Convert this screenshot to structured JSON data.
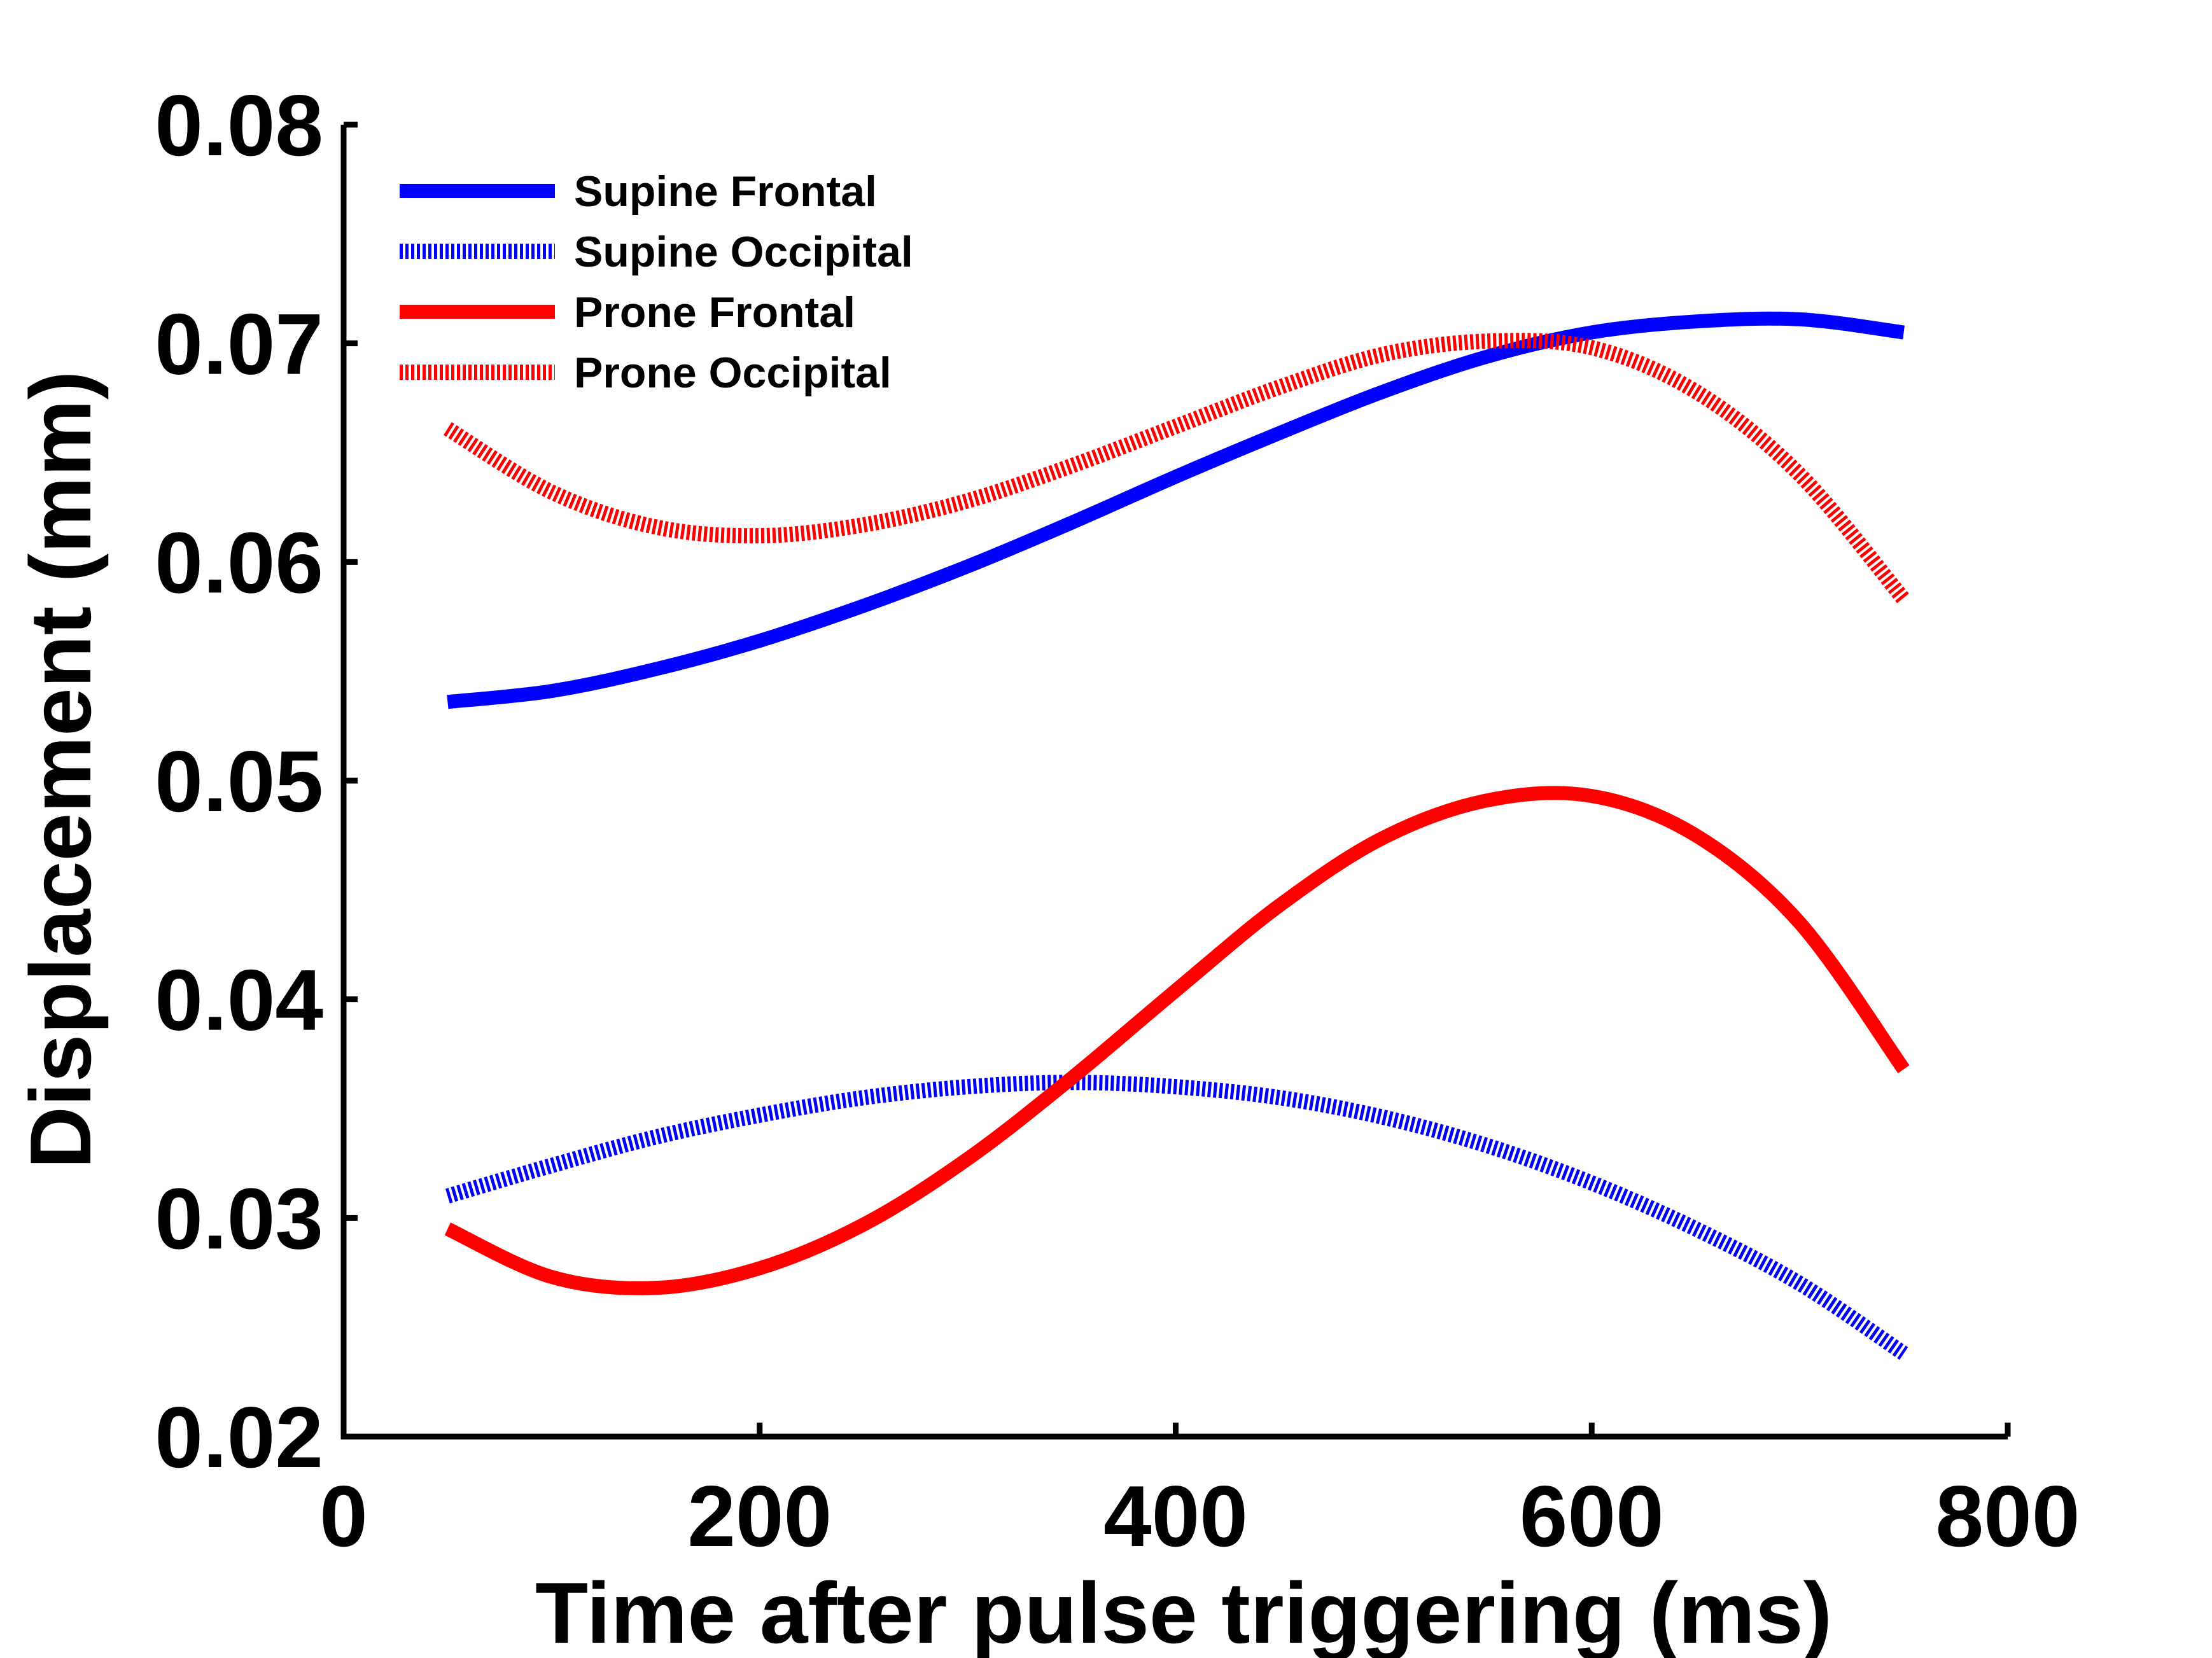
{
  "chart_data": {
    "type": "line",
    "title": "",
    "xlabel": "Time after pulse triggering (ms)",
    "ylabel": "Displacement (mm)",
    "xlim": [
      0,
      800
    ],
    "ylim": [
      0.02,
      0.08
    ],
    "xticks": [
      0,
      200,
      400,
      600,
      800
    ],
    "xtick_labels": [
      "0",
      "200",
      "400",
      "600",
      "800"
    ],
    "yticks": [
      0.02,
      0.03,
      0.04,
      0.05,
      0.06,
      0.07,
      0.08
    ],
    "ytick_labels": [
      "0.02",
      "0.03",
      "0.04",
      "0.05",
      "0.06",
      "0.07",
      "0.08"
    ],
    "grid": false,
    "legend_position": "top-left",
    "x": [
      50,
      100,
      150,
      200,
      250,
      300,
      350,
      400,
      450,
      500,
      550,
      600,
      650,
      700,
      750
    ],
    "series": [
      {
        "name": "Supine Frontal",
        "color": "#0000ff",
        "style": "solid",
        "values": [
          0.0536,
          0.0541,
          0.0551,
          0.0564,
          0.058,
          0.0598,
          0.0618,
          0.0639,
          0.0659,
          0.0678,
          0.0694,
          0.0705,
          0.071,
          0.0711,
          0.0705
        ]
      },
      {
        "name": "Supine Occipital",
        "color": "#0000ff",
        "style": "dotted",
        "values": [
          0.031,
          0.0324,
          0.0337,
          0.0347,
          0.0355,
          0.036,
          0.0362,
          0.036,
          0.0355,
          0.0346,
          0.0333,
          0.0316,
          0.0295,
          0.027,
          0.0238
        ]
      },
      {
        "name": "Prone Frontal",
        "color": "#ff0000",
        "style": "solid",
        "values": [
          0.0295,
          0.0273,
          0.0268,
          0.0277,
          0.0297,
          0.0327,
          0.0364,
          0.0404,
          0.0443,
          0.0474,
          0.0491,
          0.0493,
          0.0475,
          0.0435,
          0.0368
        ]
      },
      {
        "name": "Prone Occipital",
        "color": "#ff0000",
        "style": "dotted",
        "values": [
          0.0661,
          0.0632,
          0.0616,
          0.0612,
          0.0617,
          0.0628,
          0.0644,
          0.0662,
          0.068,
          0.0695,
          0.0701,
          0.0698,
          0.0678,
          0.064,
          0.0583
        ]
      }
    ]
  }
}
